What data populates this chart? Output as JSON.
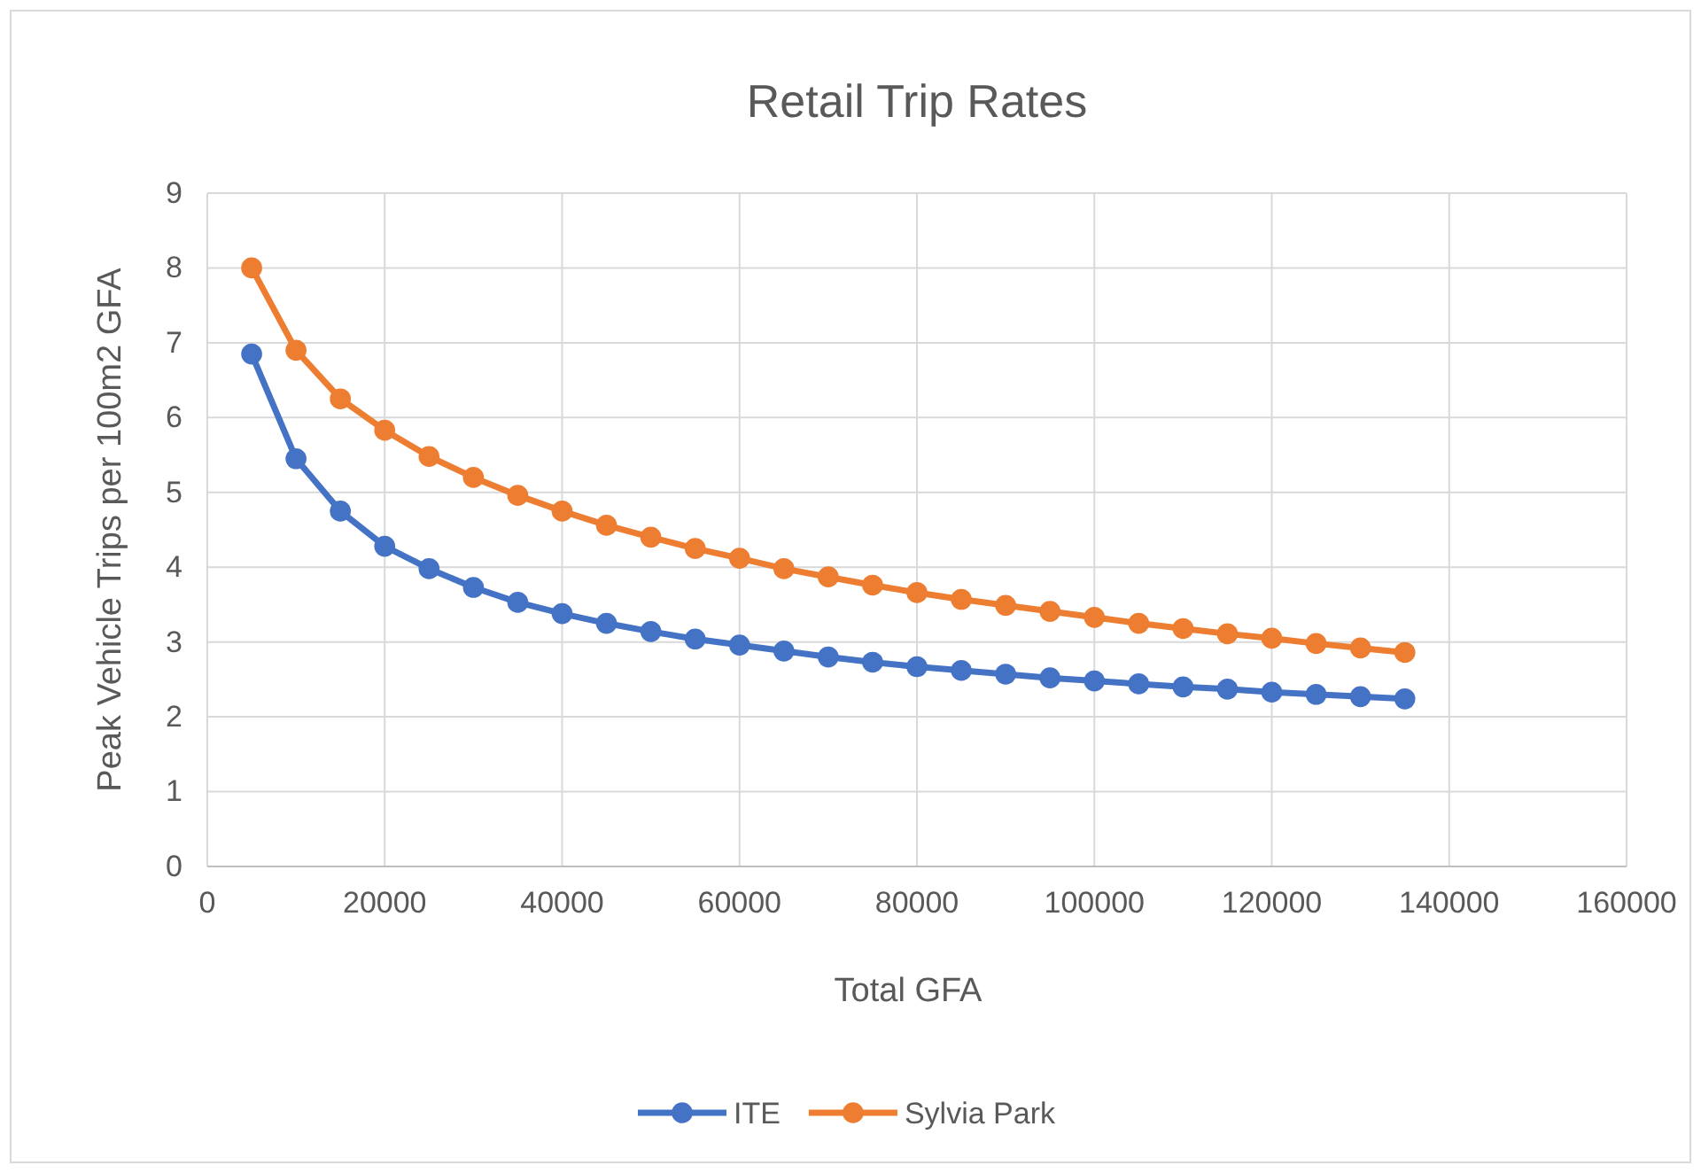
{
  "chart_data": {
    "type": "line",
    "title": "Retail Trip Rates",
    "xlabel": "Total GFA",
    "ylabel": "Peak Vehicle Trips per 100m2 GFA",
    "x": [
      5000,
      10000,
      15000,
      20000,
      25000,
      30000,
      35000,
      40000,
      45000,
      50000,
      55000,
      60000,
      65000,
      70000,
      75000,
      80000,
      85000,
      90000,
      95000,
      100000,
      105000,
      110000,
      115000,
      120000,
      125000,
      130000,
      135000
    ],
    "series": [
      {
        "name": "ITE",
        "color": "#4472c4",
        "values": [
          6.85,
          5.45,
          4.75,
          4.28,
          3.98,
          3.73,
          3.53,
          3.38,
          3.25,
          3.14,
          3.04,
          2.96,
          2.88,
          2.8,
          2.73,
          2.67,
          2.62,
          2.57,
          2.52,
          2.48,
          2.44,
          2.4,
          2.37,
          2.33,
          2.3,
          2.27,
          2.24
        ]
      },
      {
        "name": "Sylvia Park",
        "color": "#ed7d31",
        "values": [
          8.0,
          6.9,
          6.25,
          5.83,
          5.48,
          5.2,
          4.96,
          4.75,
          4.56,
          4.4,
          4.25,
          4.12,
          3.98,
          3.87,
          3.76,
          3.66,
          3.57,
          3.49,
          3.41,
          3.33,
          3.25,
          3.18,
          3.11,
          3.05,
          2.98,
          2.92,
          2.86
        ]
      }
    ],
    "xlim": [
      0,
      160000
    ],
    "xticks": [
      0,
      20000,
      40000,
      60000,
      80000,
      100000,
      120000,
      140000,
      160000
    ],
    "ylim": [
      0,
      9
    ],
    "yticks": [
      0,
      1,
      2,
      3,
      4,
      5,
      6,
      7,
      8,
      9
    ],
    "grid": true,
    "legend": "bottom",
    "marker": "circle",
    "line_style": "solid"
  }
}
